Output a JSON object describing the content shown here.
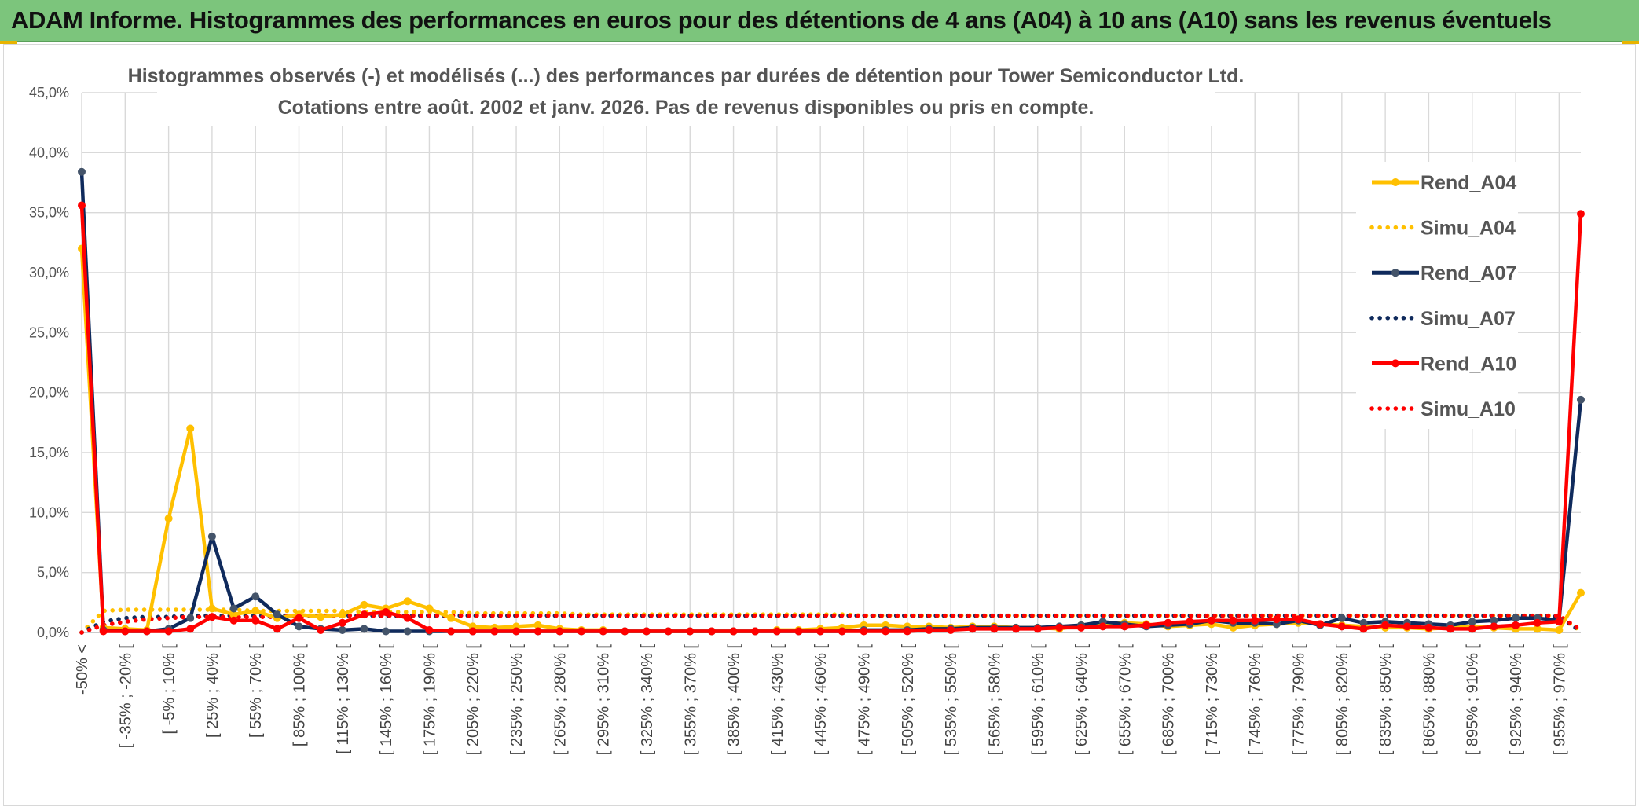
{
  "banner": {
    "title": "ADAM Informe. Histogrammes des performances en euros pour des détentions de 4 ans (A04) à 10 ans (A10) sans les revenus éventuels"
  },
  "colors": {
    "banner_bg": "#7cc57c",
    "a04": "#ffc000",
    "a07": "#0f2a5c",
    "a07_marker": "#44546a",
    "a10": "#ff0000",
    "grid": "#d9d9d9"
  },
  "chart_data": {
    "type": "line",
    "title": "Histogrammes observés (-) et modélisés (...) des performances par durées de détention pour Tower Semiconductor Ltd.",
    "subtitle": "Cotations entre août. 2002 et janv. 2026. Pas de revenus disponibles ou pris en compte.",
    "xlabel": "",
    "ylabel": "",
    "ylim": [
      0,
      45
    ],
    "y_ticks": [
      "0,0%",
      "5,0%",
      "10,0%",
      "15,0%",
      "20,0%",
      "25,0%",
      "30,0%",
      "35,0%",
      "40,0%",
      "45,0%"
    ],
    "grid": true,
    "legend_position": "right",
    "category_count": 70,
    "x_tick_labels": [
      "-50% <",
      "[ -35% ; -20% [",
      "[ -5% ; 10% [",
      "[ 25% ; 40% [",
      "[ 55% ; 70% [",
      "[ 85% ; 100% [",
      "[ 115% ; 130% [",
      "[ 145% ; 160% [",
      "[ 175% ; 190% [",
      "[ 205% ; 220% [",
      "[ 235% ; 250% [",
      "[ 265% ; 280% [",
      "[ 295% ; 310% [",
      "[ 325% ; 340% [",
      "[ 355% ; 370% [",
      "[ 385% ; 400% [",
      "[ 415% ; 430% [",
      "[ 445% ; 460% [",
      "[ 475% ; 490% [",
      "[ 505% ; 520% [",
      "[ 535% ; 550% [",
      "[ 565% ; 580% [",
      "[ 595% ; 610% [",
      "[ 625% ; 640% [",
      "[ 655% ; 670% [",
      "[ 685% ; 700% [",
      "[ 715% ; 730% [",
      "[ 745% ; 760% [",
      "[ 775% ; 790% [",
      "[ 805% ; 820% [",
      "[ 835% ; 850% [",
      "[ 865% ; 880% [",
      "[ 895% ; 910% [",
      "[ 925% ; 940% [",
      "[ 955% ; 970% ["
    ],
    "series": [
      {
        "name": "Rend_A04",
        "style": "solid",
        "color": "#ffc000",
        "values": [
          32.0,
          0.4,
          0.3,
          0.2,
          9.5,
          17.0,
          2.0,
          1.5,
          1.8,
          1.2,
          1.5,
          1.3,
          1.5,
          2.3,
          2.0,
          2.6,
          2.0,
          1.2,
          0.5,
          0.4,
          0.5,
          0.6,
          0.3,
          0.2,
          0.2,
          0.1,
          0.1,
          0.1,
          0.1,
          0.1,
          0.1,
          0.1,
          0.2,
          0.2,
          0.3,
          0.4,
          0.6,
          0.6,
          0.5,
          0.5,
          0.4,
          0.5,
          0.5,
          0.4,
          0.4,
          0.3,
          0.6,
          0.7,
          0.8,
          0.7,
          0.5,
          0.6,
          0.7,
          0.4,
          0.6,
          0.7,
          0.8,
          0.7,
          0.6,
          0.5,
          0.4,
          0.4,
          0.3,
          0.4,
          0.5,
          0.4,
          0.3,
          0.3,
          0.2,
          3.3
        ]
      },
      {
        "name": "Simu_A04",
        "style": "dotted",
        "color": "#ffc000",
        "values": [
          0.0,
          1.8,
          1.9,
          1.9,
          1.9,
          1.9,
          1.9,
          1.9,
          1.8,
          1.8,
          1.8,
          1.8,
          1.8,
          1.7,
          1.7,
          1.7,
          1.7,
          1.7,
          1.6,
          1.6,
          1.6,
          1.6,
          1.6,
          1.5,
          1.5,
          1.5,
          1.5,
          1.5,
          1.5,
          1.5,
          1.5,
          1.5,
          1.5,
          1.5,
          1.5,
          1.5,
          1.4,
          1.4,
          1.4,
          1.4,
          1.4,
          1.4,
          1.4,
          1.4,
          1.4,
          1.4,
          1.4,
          1.4,
          1.4,
          1.4,
          1.4,
          1.4,
          1.4,
          1.4,
          1.4,
          1.4,
          1.4,
          1.4,
          1.4,
          1.4,
          1.4,
          1.4,
          1.4,
          1.4,
          1.4,
          1.4,
          1.4,
          1.4,
          1.4,
          0.1
        ]
      },
      {
        "name": "Rend_A07",
        "style": "solid",
        "color": "#0f2a5c",
        "values": [
          38.4,
          0.2,
          0.1,
          0.1,
          0.3,
          1.2,
          8.0,
          2.0,
          3.0,
          1.5,
          0.5,
          0.3,
          0.2,
          0.3,
          0.1,
          0.1,
          0.1,
          0.1,
          0.1,
          0.1,
          0.1,
          0.1,
          0.1,
          0.1,
          0.1,
          0.1,
          0.1,
          0.1,
          0.1,
          0.1,
          0.1,
          0.1,
          0.1,
          0.1,
          0.1,
          0.1,
          0.2,
          0.2,
          0.2,
          0.3,
          0.3,
          0.4,
          0.4,
          0.4,
          0.4,
          0.5,
          0.6,
          0.9,
          0.7,
          0.5,
          0.6,
          0.7,
          1.0,
          0.8,
          0.8,
          0.7,
          1.0,
          0.6,
          1.2,
          0.8,
          0.9,
          0.8,
          0.7,
          0.6,
          0.9,
          1.0,
          1.2,
          1.2,
          1.0,
          19.4
        ]
      },
      {
        "name": "Simu_A07",
        "style": "dotted",
        "color": "#0f2a5c",
        "values": [
          0.0,
          0.9,
          1.2,
          1.3,
          1.3,
          1.4,
          1.4,
          1.4,
          1.4,
          1.4,
          1.4,
          1.4,
          1.4,
          1.4,
          1.4,
          1.4,
          1.4,
          1.4,
          1.4,
          1.4,
          1.4,
          1.4,
          1.4,
          1.4,
          1.4,
          1.4,
          1.4,
          1.4,
          1.4,
          1.4,
          1.4,
          1.4,
          1.4,
          1.4,
          1.4,
          1.4,
          1.4,
          1.4,
          1.4,
          1.4,
          1.4,
          1.4,
          1.4,
          1.4,
          1.4,
          1.4,
          1.4,
          1.4,
          1.4,
          1.4,
          1.4,
          1.4,
          1.4,
          1.4,
          1.4,
          1.4,
          1.4,
          1.4,
          1.4,
          1.4,
          1.4,
          1.4,
          1.4,
          1.4,
          1.4,
          1.4,
          1.4,
          1.4,
          1.3,
          0.1
        ]
      },
      {
        "name": "Rend_A10",
        "style": "solid",
        "color": "#ff0000",
        "values": [
          35.6,
          0.1,
          0.1,
          0.1,
          0.1,
          0.3,
          1.3,
          1.0,
          1.0,
          0.3,
          1.2,
          0.2,
          0.8,
          1.5,
          1.7,
          1.2,
          0.2,
          0.1,
          0.1,
          0.1,
          0.1,
          0.1,
          0.1,
          0.1,
          0.1,
          0.1,
          0.1,
          0.1,
          0.1,
          0.1,
          0.1,
          0.1,
          0.1,
          0.1,
          0.1,
          0.1,
          0.1,
          0.1,
          0.1,
          0.2,
          0.2,
          0.3,
          0.3,
          0.3,
          0.3,
          0.4,
          0.4,
          0.5,
          0.5,
          0.6,
          0.8,
          0.9,
          1.0,
          1.0,
          1.0,
          1.1,
          1.1,
          0.7,
          0.5,
          0.3,
          0.6,
          0.5,
          0.4,
          0.3,
          0.3,
          0.5,
          0.6,
          0.8,
          0.9,
          34.9
        ]
      },
      {
        "name": "Simu_A10",
        "style": "dotted",
        "color": "#ff0000",
        "values": [
          0.0,
          0.6,
          0.9,
          1.1,
          1.2,
          1.3,
          1.3,
          1.3,
          1.3,
          1.3,
          1.4,
          1.4,
          1.4,
          1.4,
          1.4,
          1.4,
          1.4,
          1.4,
          1.4,
          1.4,
          1.4,
          1.4,
          1.4,
          1.4,
          1.4,
          1.4,
          1.4,
          1.4,
          1.4,
          1.4,
          1.4,
          1.4,
          1.4,
          1.4,
          1.4,
          1.4,
          1.4,
          1.4,
          1.4,
          1.4,
          1.4,
          1.4,
          1.4,
          1.4,
          1.4,
          1.4,
          1.4,
          1.4,
          1.4,
          1.4,
          1.4,
          1.4,
          1.4,
          1.4,
          1.4,
          1.4,
          1.4,
          1.4,
          1.4,
          1.4,
          1.4,
          1.4,
          1.4,
          1.4,
          1.4,
          1.4,
          1.4,
          1.4,
          1.4,
          0.2
        ]
      }
    ]
  }
}
